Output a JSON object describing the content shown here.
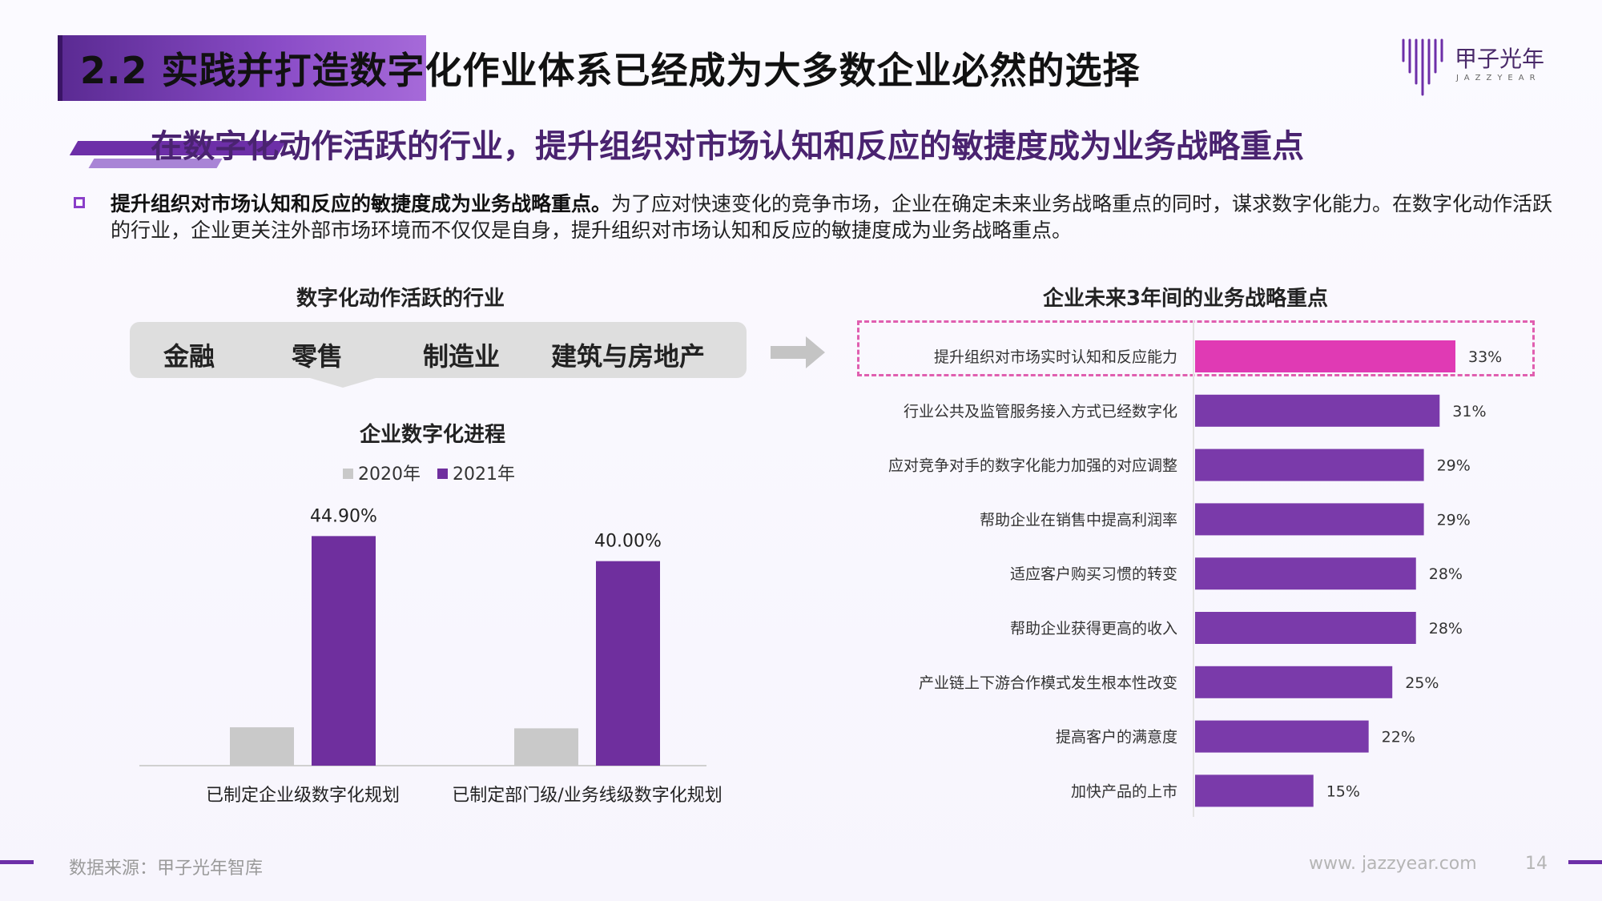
{
  "header": {
    "title": "2.2 实践并打造数字化作业体系已经成为大多数企业必然的选择",
    "logo_cn": "甲子光年",
    "logo_en": "JAZZYEAR",
    "subtitle": "在数字化动作活跃的行业，提升组织对市场认知和反应的敏捷度成为业务战略重点"
  },
  "body": {
    "bold_lead": "提升组织对市场认知和反应的敏捷度成为业务战略重点。",
    "text": "为了应对快速变化的竞争市场，企业在确定未来业务战略重点的同时，谋求数字化能力。在数字化动作活跃的行业，企业更关注外部市场环境而不仅仅是自身，提升组织对市场认知和反应的敏捷度成为业务战略重点。"
  },
  "industries": {
    "title": "数字化动作活跃的行业",
    "items": [
      "金融",
      "零售",
      "制造业",
      "建筑与房地产"
    ]
  },
  "colors": {
    "accent": "#6d2fa8",
    "bar_2021": "#6f2f9e",
    "bar_2020": "#c9c9c9",
    "bar_right": "#7a3aaa",
    "bar_highlight": "#e03ab4",
    "highlight_border": "#e05fb0"
  },
  "chart_data": [
    {
      "type": "bar",
      "title": "企业数字化进程",
      "categories": [
        "已制定企业级数字化规划",
        "已制定部门级/业务线级数字化规划"
      ],
      "series": [
        {
          "name": "2020年",
          "values": [
            7.5,
            7.3
          ]
        },
        {
          "name": "2021年",
          "values": [
            44.9,
            40.0
          ]
        }
      ],
      "data_labels": [
        "44.90%",
        "40.00%"
      ],
      "ylim": [
        0,
        50
      ],
      "grid": false,
      "legend": "top"
    },
    {
      "type": "bar",
      "orientation": "horizontal",
      "title": "企业未来3年间的业务战略重点",
      "categories": [
        "提升组织对市场实时认知和反应能力",
        "行业公共及监管服务接入方式已经数字化",
        "应对竞争对手的数字化能力加强的对应调整",
        "帮助企业在销售中提高利润率",
        "适应客户购买习惯的转变",
        "帮助企业获得更高的收入",
        "产业链上下游合作模式发生根本性改变",
        "提高客户的满意度",
        "加快产品的上市"
      ],
      "values": [
        33,
        31,
        29,
        29,
        28,
        28,
        25,
        22,
        15
      ],
      "value_labels": [
        "33%",
        "31%",
        "29%",
        "29%",
        "28%",
        "28%",
        "25%",
        "22%",
        "15%"
      ],
      "highlighted_index": 0,
      "xlim": [
        0,
        40
      ],
      "grid": false
    }
  ],
  "footer": {
    "source": "数据来源：甲子光年智库",
    "url": "www. jazzyear.com",
    "page": "14"
  }
}
